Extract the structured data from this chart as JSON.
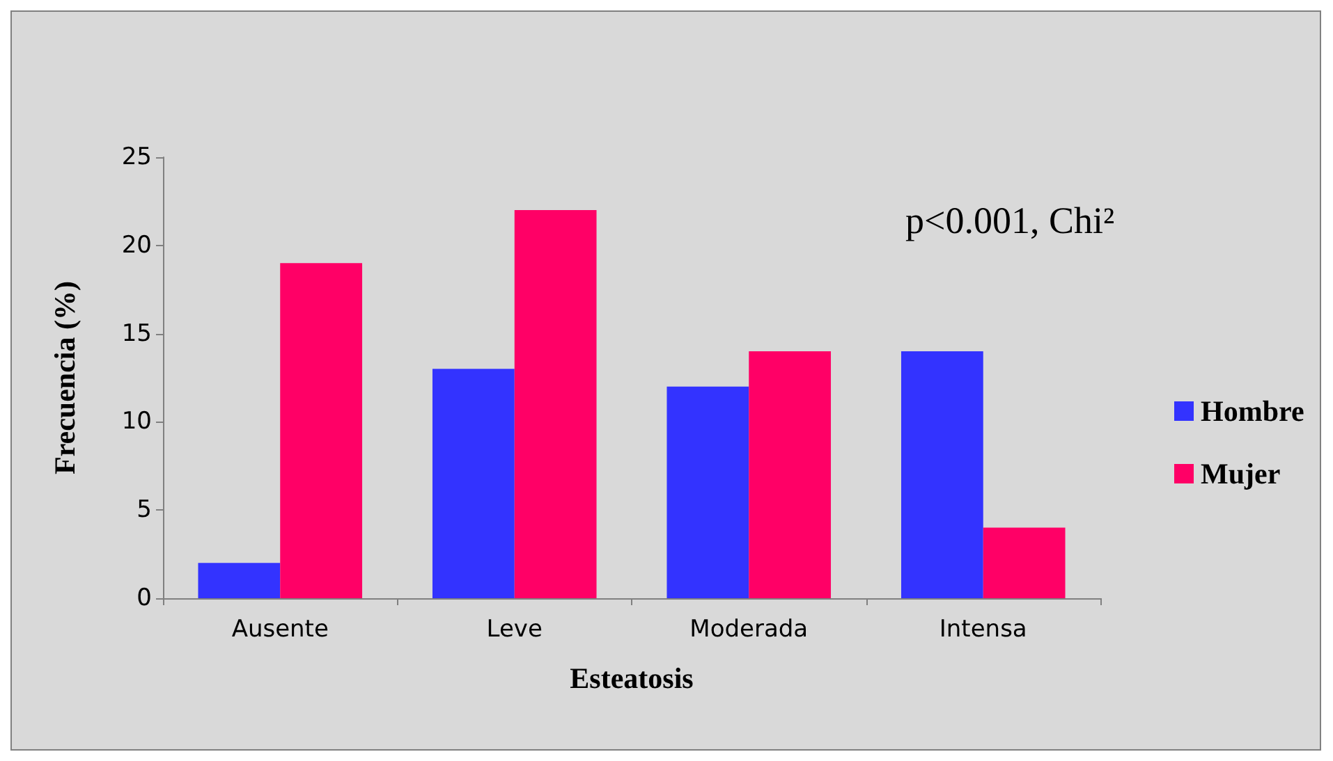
{
  "chart_data": {
    "type": "bar",
    "xlabel": "Esteatosis",
    "ylabel": "Frecuencia (%)",
    "categories": [
      "Ausente",
      "Leve",
      "Moderada",
      "Intensa"
    ],
    "series": [
      {
        "name": "Hombre",
        "color": "#3333ff",
        "values": [
          2,
          13,
          12,
          14
        ]
      },
      {
        "name": "Mujer",
        "color": "#ff0066",
        "values": [
          19,
          22,
          14,
          4
        ]
      }
    ],
    "ylim": [
      0,
      25
    ],
    "yticks": [
      0,
      5,
      10,
      15,
      20,
      25
    ],
    "grid": false,
    "legend": "right",
    "annotations": [
      "p<0.001, Chi²"
    ]
  }
}
